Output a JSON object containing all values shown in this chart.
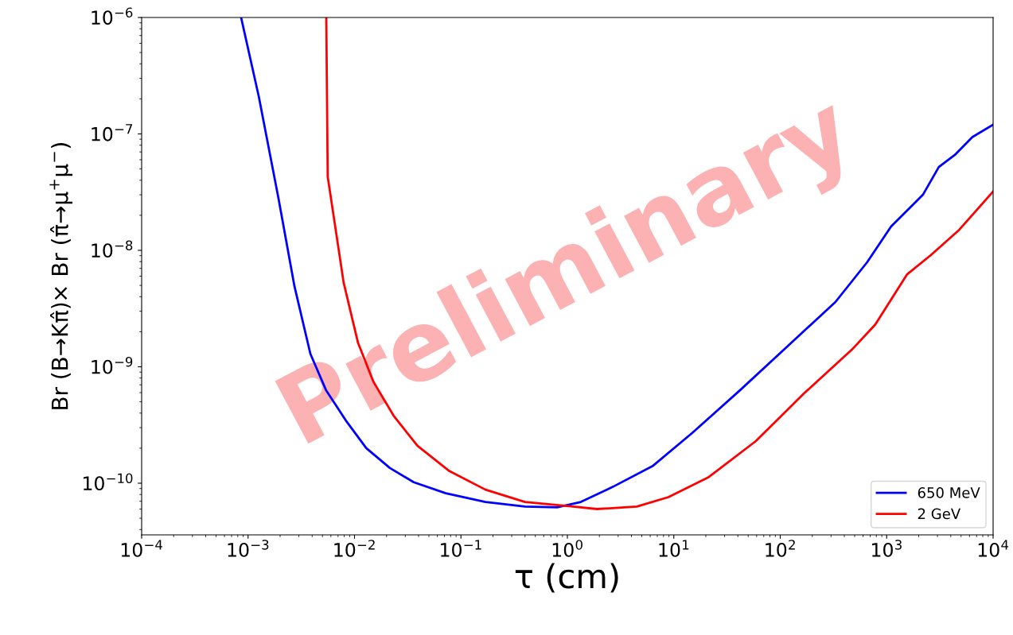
{
  "chart_data": {
    "type": "line",
    "xlabel": "τ (cm)",
    "ylabel": "Br (B→Kπ̂)× Br (π̂→μ$^{+}$μ$^{−}$)",
    "log": "xy",
    "grid": false,
    "legend": "bottom right",
    "line_style": "solid",
    "marker": "none",
    "xlim": [
      0.0001,
      10000
    ],
    "ylim": [
      3.6e-11,
      1e-06
    ],
    "xticks": [
      {
        "value": 0.0001,
        "label": "10$^{−4}$"
      },
      {
        "value": 0.001,
        "label": "10$^{−3}$"
      },
      {
        "value": 0.01,
        "label": "10$^{−2}$"
      },
      {
        "value": 0.1,
        "label": "10$^{−1}$"
      },
      {
        "value": 1,
        "label": "10$^{0}$"
      },
      {
        "value": 10,
        "label": "10$^{1}$"
      },
      {
        "value": 100,
        "label": "10$^{2}$"
      },
      {
        "value": 1000,
        "label": "10$^{3}$"
      },
      {
        "value": 10000,
        "label": "10$^{4}$"
      }
    ],
    "yticks": [
      {
        "value": 1e-10,
        "label": "10$^{−10}$"
      },
      {
        "value": 1e-09,
        "label": "10$^{−9}$"
      },
      {
        "value": 1e-08,
        "label": "10$^{−8}$"
      },
      {
        "value": 1e-07,
        "label": "10$^{−7}$"
      },
      {
        "value": 1e-06,
        "label": "10$^{−6}$"
      }
    ],
    "annotations": [
      "Preliminary"
    ],
    "series": [
      {
        "name": "650 MeV",
        "color": "#0000ff",
        "x": [
          0.00086,
          0.00126,
          0.00193,
          0.00273,
          0.00385,
          0.0054,
          0.0084,
          0.0129,
          0.0215,
          0.036,
          0.072,
          0.17,
          0.4,
          0.8,
          1.34,
          2.67,
          6.3,
          14.9,
          42,
          117,
          330,
          655,
          1100,
          2190,
          3090,
          4370,
          6380,
          10000
        ],
        "values": [
          1e-06,
          2.1e-07,
          2.8e-08,
          4.9e-09,
          1.29e-09,
          6.3e-10,
          3.4e-10,
          2e-10,
          1.35e-10,
          1.02e-10,
          8.2e-11,
          6.9e-11,
          6.3e-11,
          6.2e-11,
          6.9e-11,
          9.3e-11,
          1.4e-10,
          2.7e-10,
          6.3e-10,
          1.5e-09,
          3.6e-09,
          7.9e-09,
          1.6e-08,
          3e-08,
          5.2e-08,
          6.6e-08,
          9.4e-08,
          1.2e-07
        ]
      },
      {
        "name": "2 GeV",
        "color": "#ff0000",
        "x": [
          0.00543,
          0.0056,
          0.0079,
          0.0108,
          0.0151,
          0.0233,
          0.039,
          0.078,
          0.17,
          0.4,
          1.13,
          1.9,
          4.5,
          8.9,
          21,
          59,
          167,
          470,
          780,
          1550,
          2600,
          4800,
          10000
        ],
        "values": [
          1e-06,
          4.3e-08,
          5.3e-09,
          1.6e-09,
          7.4e-10,
          3.8e-10,
          2.1e-10,
          1.27e-10,
          8.8e-11,
          6.9e-11,
          6.3e-11,
          6e-11,
          6.3e-11,
          7.6e-11,
          1.12e-10,
          2.3e-10,
          5.9e-10,
          1.4e-09,
          2.3e-09,
          6.2e-09,
          9.1e-09,
          1.5e-08,
          3.2e-08
        ]
      }
    ]
  }
}
